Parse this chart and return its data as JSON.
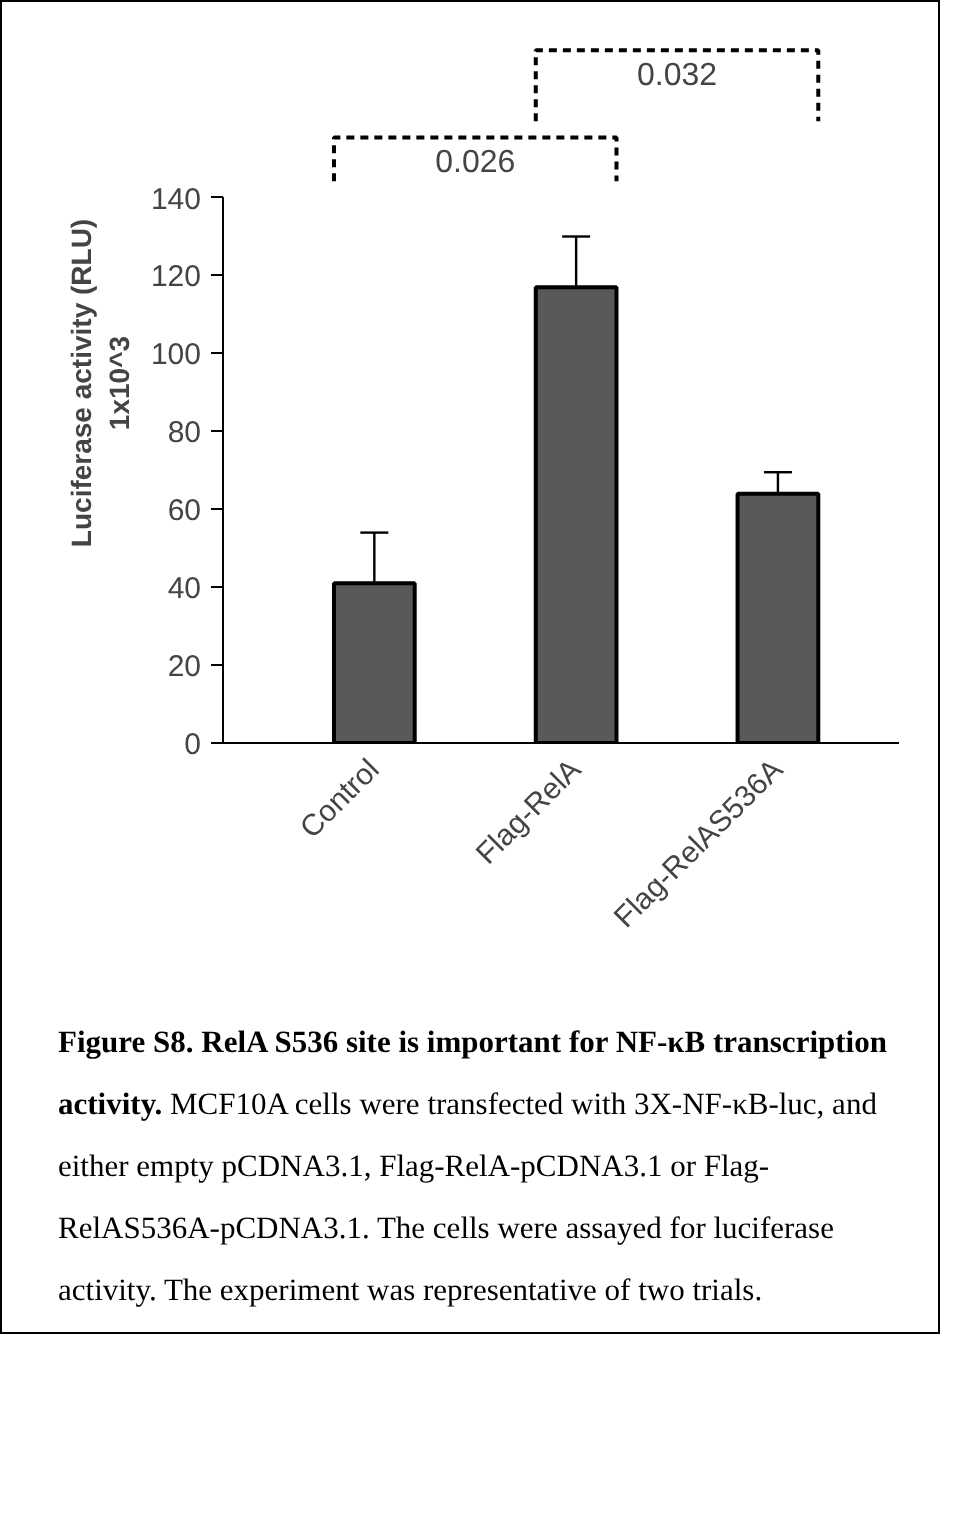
{
  "chart_data": {
    "type": "bar",
    "title": "Figure S8. RelA S536 site is important for NF-κB transcription activity.",
    "ylabel": "Luciferase activity (RLU)\n1x10^3",
    "categories": [
      "Control",
      "Flag-RelA",
      "Flag-RelAS536A"
    ],
    "values": [
      41,
      117,
      64
    ],
    "errors": [
      13,
      13,
      5.5
    ],
    "color": "#595959",
    "ylim": [
      0,
      140
    ],
    "yticks": [
      0,
      20,
      40,
      60,
      80,
      100,
      120,
      140
    ],
    "annotations": [
      "0.026",
      "0.032",
      "MCF10A cells were transfected with 3X-NF-κB-luc, and either empty pCDNA3.1, Flag-RelA-pCDNA3.1 or Flag-RelAS536A-pCDNA3.1. The cells were assayed for luciferase activity.  The experiment was representative of two trials."
    ]
  }
}
